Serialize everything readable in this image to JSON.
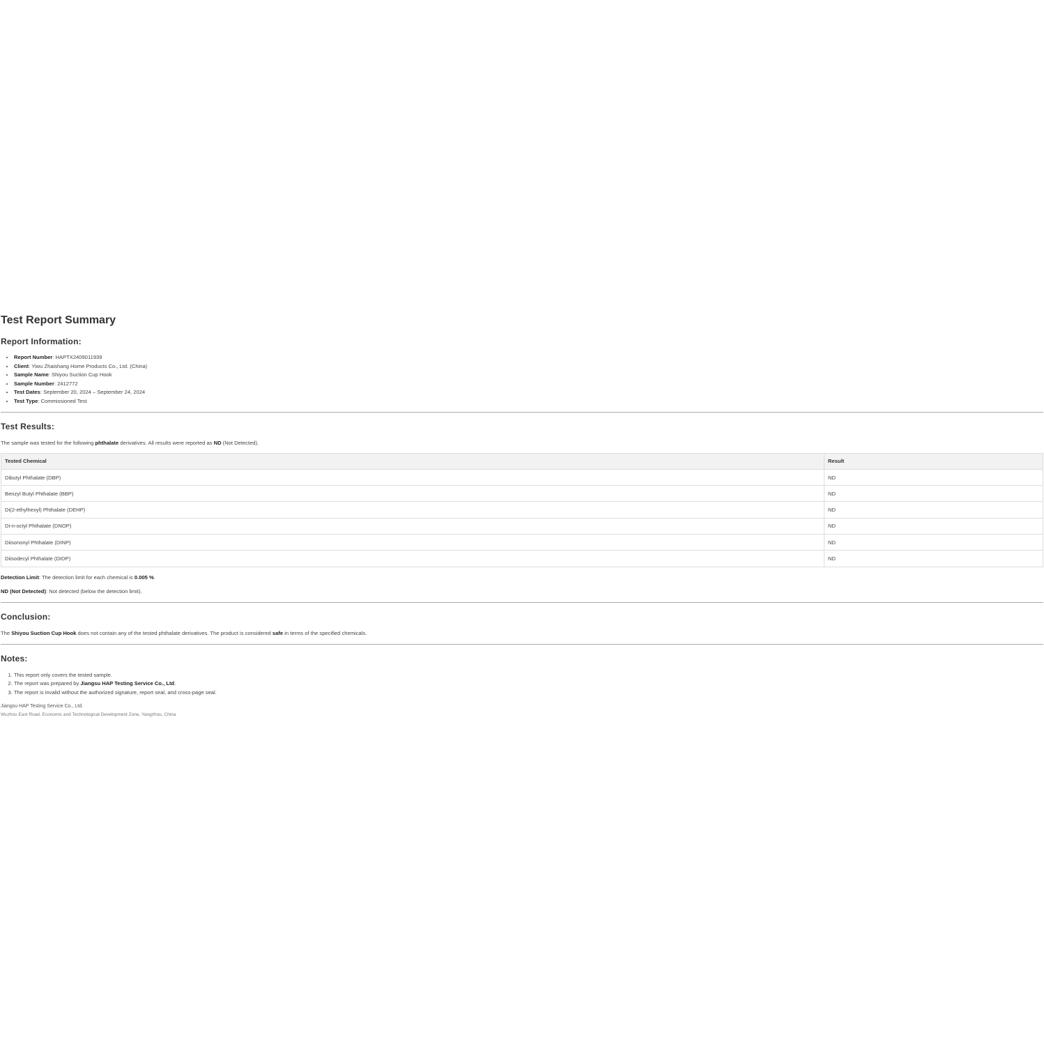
{
  "title": "Test Report Summary",
  "report_info": {
    "heading": "Report Information:",
    "items": [
      {
        "label": "Report Number",
        "value": "HAPTX2409011939"
      },
      {
        "label": "Client",
        "value": "Yiwu Zhaishang Home Products Co., Ltd. (China)"
      },
      {
        "label": "Sample Name",
        "value": "Shiyou Suction Cup Hook"
      },
      {
        "label": "Sample Number",
        "value": "2412772"
      },
      {
        "label": "Test Dates",
        "value": "September 20, 2024 – September 24, 2024"
      },
      {
        "label": "Test Type",
        "value": "Commissioned Test"
      }
    ]
  },
  "results": {
    "heading": "Test Results:",
    "intro_1": "The sample was tested for the following ",
    "intro_bold": "phthalate",
    "intro_2": " derivatives. All results were reported as ",
    "intro_nd": "ND",
    "intro_3": " (Not Detected).",
    "columns": [
      "Tested Chemical",
      "Result"
    ],
    "rows": [
      [
        "Dibutyl Phthalate (DBP)",
        "ND"
      ],
      [
        "Benzyl Butyl Phthalate (BBP)",
        "ND"
      ],
      [
        "Di(2-ethylhexyl) Phthalate (DEHP)",
        "ND"
      ],
      [
        "Di-n-octyl Phthalate (DNOP)",
        "ND"
      ],
      [
        "Diisononyl Phthalate (DINP)",
        "ND"
      ],
      [
        "Diisodecyl Phthalate (DIDP)",
        "ND"
      ]
    ],
    "limit_label": "Detection Limit",
    "limit_text": ": The detection limit for each chemical is ",
    "limit_value": "0.005 %",
    "limit_end": ".",
    "nd_label": "ND (Not Detected)",
    "nd_text": ": Not detected (below the detection limit)."
  },
  "conclusion": {
    "heading": "Conclusion:",
    "t1": "The ",
    "product": "Shiyou Suction Cup Hook",
    "t2": " does not contain any of the tested phthalate derivatives. The product is considered ",
    "safe": "safe",
    "t3": " in terms of the specified chemicals."
  },
  "notes": {
    "heading": "Notes:",
    "n1": "This report only covers the tested sample.",
    "n2a": "The report was prepared by ",
    "n2b": "Jiangsu HAP Testing Service Co., Ltd",
    "n2c": ".",
    "n3": "The report is invalid without the authorized signature, report seal, and cross-page seal."
  },
  "footer": {
    "company": "Jiangsu HAP Testing Service Co., Ltd.",
    "address": "Wuzhou East Road, Economic and Technological Development Zone, Yangzhou, China"
  }
}
